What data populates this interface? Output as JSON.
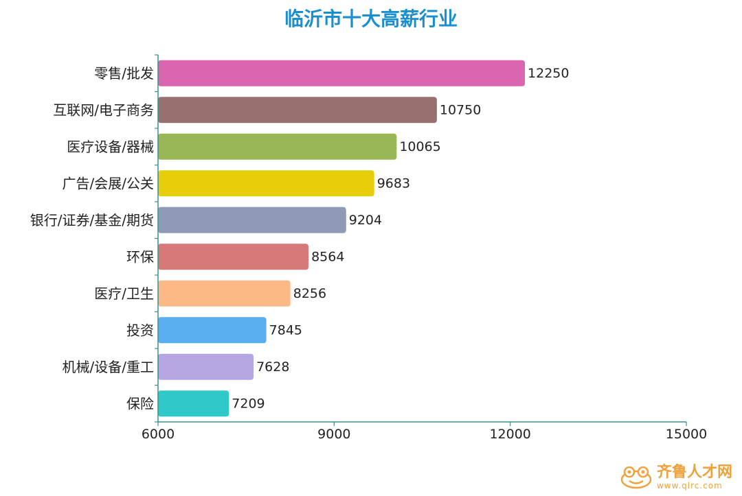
{
  "chart_data": {
    "type": "bar",
    "orientation": "horizontal",
    "title": "临沂市十大高薪行业",
    "categories": [
      "零售/批发",
      "互联网/电子商务",
      "医疗设备/器械",
      "广告/会展/公关",
      "银行/证券/基金/期货",
      "环保",
      "医疗/卫生",
      "投资",
      "机械/设备/重工",
      "保险"
    ],
    "values": [
      12250,
      10750,
      10065,
      9683,
      9204,
      8564,
      8256,
      7845,
      7628,
      7209
    ],
    "colors": [
      "#d966ae",
      "#967170",
      "#99b756",
      "#e6cf0a",
      "#8e9ab6",
      "#d87979",
      "#fcb986",
      "#5aaff0",
      "#b5a6e2",
      "#2fc9c9"
    ],
    "xlim": [
      6000,
      15000
    ],
    "xticks": [
      6000,
      9000,
      12000,
      15000
    ],
    "xlabel": "",
    "ylabel": "",
    "grid": false,
    "legend": "none",
    "axis_color": "#3a8f92"
  },
  "watermark": {
    "brand": "齐鲁人才网",
    "url": "www.qlrc.com",
    "icon": "frog-logo-icon"
  }
}
